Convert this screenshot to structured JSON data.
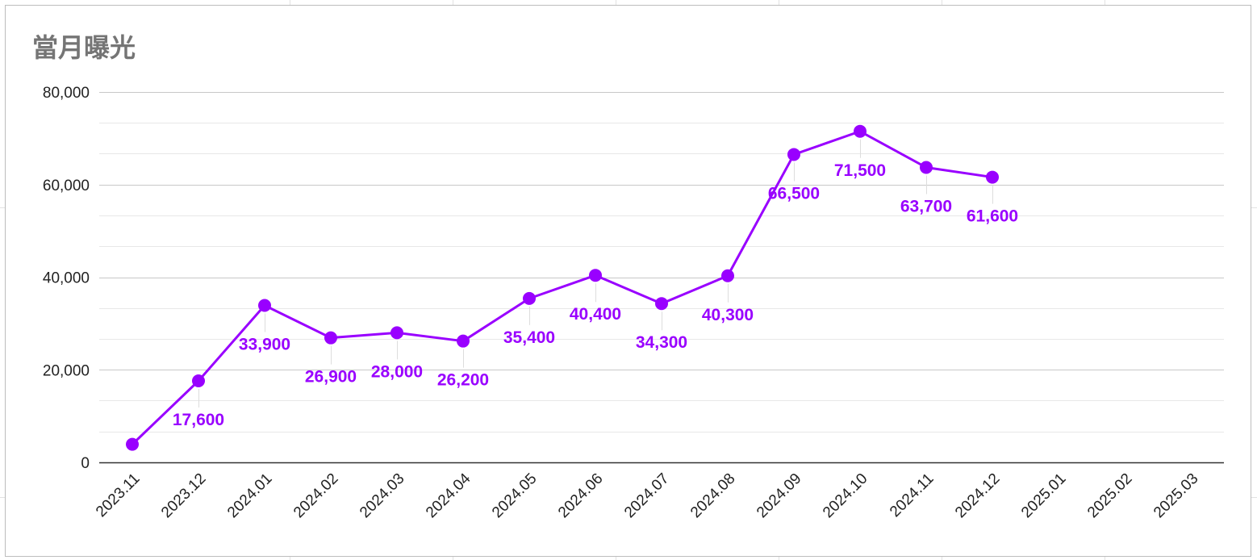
{
  "chart_data": {
    "type": "line",
    "title": "當月曝光",
    "xlabel": "",
    "ylabel": "",
    "categories": [
      "2023.11",
      "2023.12",
      "2024.01",
      "2024.02",
      "2024.03",
      "2024.04",
      "2024.05",
      "2024.06",
      "2024.07",
      "2024.08",
      "2024.09",
      "2024.10",
      "2024.11",
      "2024.12",
      "2025.01",
      "2025.02",
      "2025.03"
    ],
    "series": [
      {
        "color": "#9900ff",
        "values": [
          3900,
          17600,
          33900,
          26900,
          28000,
          26200,
          35400,
          40400,
          34300,
          40300,
          66500,
          71500,
          63700,
          61600,
          null,
          null,
          null
        ],
        "data_labels": [
          "",
          "17,600",
          "33,900",
          "26,900",
          "28,000",
          "26,200",
          "35,400",
          "40,400",
          "34,300",
          "40,300",
          "66,500",
          "71,500",
          "63,700",
          "61,600",
          "",
          "",
          ""
        ]
      }
    ],
    "ylim": [
      0,
      80000
    ],
    "y_ticks": [
      {
        "value": 0,
        "label": "0"
      },
      {
        "value": 20000,
        "label": "20,000"
      },
      {
        "value": 40000,
        "label": "40,000"
      },
      {
        "value": 60000,
        "label": "60,000"
      },
      {
        "value": 80000,
        "label": "80,000"
      }
    ],
    "minor_grid_step": 6667,
    "grid": true,
    "legend": "none",
    "colors": {
      "series": "#9900ff",
      "title": "#757575",
      "major_grid": "#c8c8c8",
      "minor_grid": "#e8e8e8",
      "axis": "#333333",
      "leader": "#dddddd"
    }
  }
}
